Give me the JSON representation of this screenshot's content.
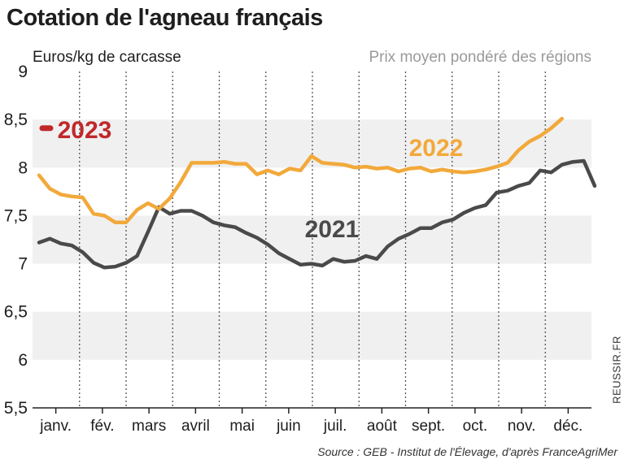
{
  "title": "Cotation de l'agneau français",
  "subtitle": "Prix moyen pondéré des régions",
  "source": "Source : GEB - Institut de l'Élevage, d'après FranceAgriMer",
  "watermark": "REUSSIR.FR",
  "colors": {
    "s2021": "#4a4a4a",
    "s2022": "#f2a93b",
    "s2023": "#c0282a",
    "band": "#f0f0f0",
    "grid": "#555555"
  },
  "chart_data": {
    "type": "line",
    "ylabel": "Euros/kg de carcasse",
    "ylim": [
      5.5,
      9
    ],
    "yticks": [
      5.5,
      6,
      6.5,
      7,
      7.5,
      8,
      8.5,
      9
    ],
    "ytick_labels": [
      "5,5",
      "6",
      "6,5",
      "7",
      "7,5",
      "8",
      "8,5",
      "9"
    ],
    "months": [
      "janv.",
      "fév.",
      "mars",
      "avril",
      "mai",
      "juin",
      "juil.",
      "août",
      "sept.",
      "oct.",
      "nov.",
      "déc."
    ],
    "weeks_axis": [
      1,
      52
    ],
    "series": [
      {
        "name": "2021",
        "week": [
          1,
          2,
          3,
          4,
          5,
          6,
          7,
          8,
          9,
          10,
          11,
          12,
          13,
          14,
          15,
          16,
          17,
          18,
          19,
          20,
          21,
          22,
          23,
          24,
          25,
          26,
          27,
          28,
          29,
          30,
          31,
          32,
          33,
          34,
          35,
          36,
          37,
          38,
          39,
          40,
          41,
          42,
          43,
          44,
          45,
          46,
          47,
          48,
          49,
          50,
          51,
          52
        ],
        "values": [
          7.22,
          7.26,
          7.21,
          7.19,
          7.12,
          7.01,
          6.96,
          6.97,
          7.01,
          7.08,
          7.33,
          7.59,
          7.52,
          7.55,
          7.55,
          7.5,
          7.43,
          7.4,
          7.38,
          7.32,
          7.27,
          7.2,
          7.11,
          7.05,
          6.99,
          7.0,
          6.98,
          7.05,
          7.02,
          7.03,
          7.08,
          7.05,
          7.18,
          7.26,
          7.31,
          7.37,
          7.37,
          7.43,
          7.46,
          7.53,
          7.58,
          7.61,
          7.74,
          7.76,
          7.81,
          7.84,
          7.97,
          7.95,
          8.03,
          8.06,
          8.07,
          7.81
        ]
      },
      {
        "name": "2022",
        "week": [
          1,
          2,
          3,
          4,
          5,
          6,
          7,
          8,
          9,
          10,
          11,
          12,
          13,
          14,
          15,
          16,
          17,
          18,
          19,
          20,
          21,
          22,
          23,
          24,
          25,
          26,
          27,
          28,
          29,
          30,
          31,
          32,
          33,
          34,
          35,
          36,
          37,
          38,
          39,
          40,
          41,
          42,
          43,
          44,
          45,
          46,
          47,
          48,
          49
        ],
        "values": [
          7.92,
          7.78,
          7.72,
          7.7,
          7.69,
          7.52,
          7.5,
          7.43,
          7.43,
          7.56,
          7.63,
          7.57,
          7.68,
          7.85,
          8.05,
          8.05,
          8.05,
          8.06,
          8.04,
          8.04,
          7.93,
          7.97,
          7.93,
          7.99,
          7.97,
          8.12,
          8.05,
          8.04,
          8.03,
          8.0,
          8.01,
          7.99,
          8.0,
          7.96,
          7.99,
          8.0,
          7.96,
          7.98,
          7.96,
          7.95,
          7.96,
          7.98,
          8.01,
          8.05,
          8.18,
          8.27,
          8.33,
          8.41,
          8.51
        ]
      },
      {
        "name": "2023",
        "week": [
          1
        ],
        "values": [
          8.41
        ]
      }
    ],
    "grid": "alternating horizontal bands, dotted vertical month separators"
  }
}
